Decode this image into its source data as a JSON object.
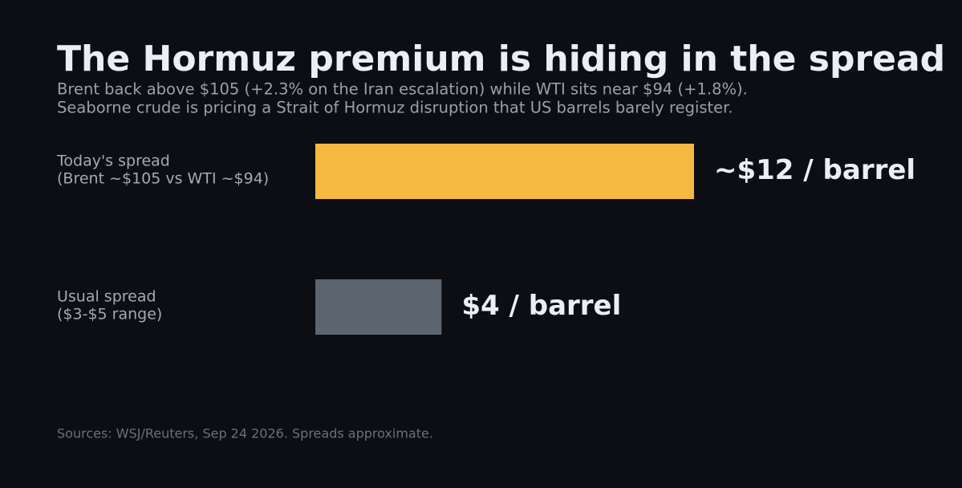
{
  "chart_data": {
    "type": "bar",
    "orientation": "horizontal",
    "title": "The Hormuz premium is hiding in the spread",
    "subtitle": [
      "Brent back above $105 (+2.3% on the Iran escalation) while WTI sits near $94 (+1.8%).",
      "Seaborne crude is pricing a Strait of Hormuz disruption that US barrels barely register."
    ],
    "categories": [
      [
        "Today's spread",
        "(Brent ~$105 vs WTI ~$94)"
      ],
      [
        "Usual spread",
        "($3-$5 range)"
      ]
    ],
    "values": [
      12,
      4
    ],
    "value_labels": [
      "~$12 / barrel",
      "$4 / barrel"
    ],
    "colors": [
      "#f5b942",
      "#5c6470"
    ],
    "source": "Sources: WSJ/Reuters, Sep 24 2026. Spreads approximate."
  }
}
